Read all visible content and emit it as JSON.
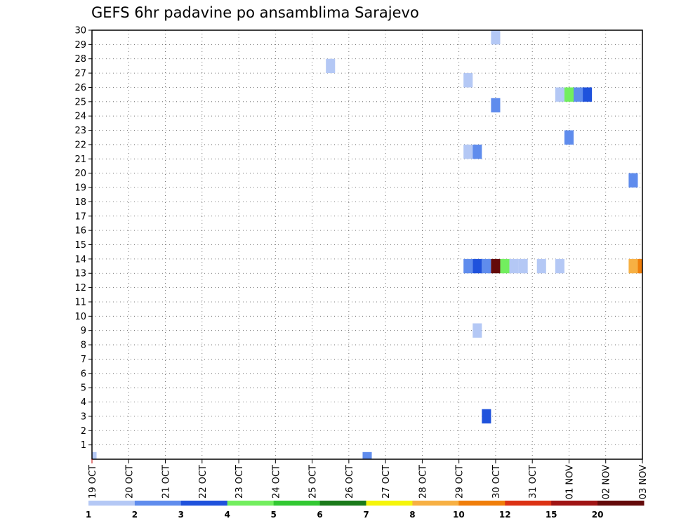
{
  "chart_data": {
    "type": "heatmap",
    "title": "GEFS 6hr padavine po ansamblima Sarajevo",
    "xlabel": "",
    "ylabel": "",
    "x_tick_labels": [
      "19 OCT",
      "20 OCT",
      "21 OCT",
      "22 OCT",
      "23 OCT",
      "24 OCT",
      "25 OCT",
      "26 OCT",
      "27 OCT",
      "28 OCT",
      "29 OCT",
      "30 OCT",
      "31 OCT",
      "01 NOV",
      "02 NOV",
      "03 NOV"
    ],
    "y_tick_labels": [
      "1",
      "2",
      "3",
      "4",
      "5",
      "6",
      "7",
      "8",
      "9",
      "10",
      "11",
      "12",
      "13",
      "14",
      "15",
      "16",
      "17",
      "18",
      "19",
      "20",
      "21",
      "22",
      "23",
      "24",
      "25",
      "26",
      "27",
      "28",
      "29",
      "30"
    ],
    "xlim": [
      0,
      15
    ],
    "ylim": [
      0,
      30
    ],
    "grid": true,
    "step_days": 0.25,
    "colorbar": {
      "labels": [
        "1",
        "2",
        "3",
        "4",
        "5",
        "6",
        "7",
        "8",
        "10",
        "12",
        "15",
        "20"
      ],
      "colors": [
        "#b4c8f5",
        "#5f8ced",
        "#1f52dc",
        "#72ee5e",
        "#32c832",
        "#1a7a1a",
        "#f5f50a",
        "#f7b043",
        "#f07e0a",
        "#dc3214",
        "#a01414",
        "#640a0a"
      ]
    },
    "cells": [
      {
        "x": 0.0,
        "member": 0,
        "level": 0
      },
      {
        "x": 7.5,
        "member": 0,
        "level": 1
      },
      {
        "x": 11.0,
        "member": 29.5,
        "level": 0
      },
      {
        "x": 6.5,
        "member": 27.5,
        "level": 0
      },
      {
        "x": 10.25,
        "member": 26.5,
        "level": 0
      },
      {
        "x": 12.75,
        "member": 25.5,
        "level": 0
      },
      {
        "x": 13.0,
        "member": 25.5,
        "level": 3
      },
      {
        "x": 13.25,
        "member": 25.5,
        "level": 1
      },
      {
        "x": 13.5,
        "member": 25.5,
        "level": 2
      },
      {
        "x": 11.0,
        "member": 24.75,
        "level": 1
      },
      {
        "x": 13.0,
        "member": 22.5,
        "level": 1
      },
      {
        "x": 10.25,
        "member": 21.5,
        "level": 0
      },
      {
        "x": 10.5,
        "member": 21.5,
        "level": 1
      },
      {
        "x": 14.75,
        "member": 19.5,
        "level": 1
      },
      {
        "x": 10.25,
        "member": 13.5,
        "level": 1
      },
      {
        "x": 10.5,
        "member": 13.5,
        "level": 2
      },
      {
        "x": 10.75,
        "member": 13.5,
        "level": 1
      },
      {
        "x": 11.0,
        "member": 13.5,
        "level": 11
      },
      {
        "x": 11.25,
        "member": 13.5,
        "level": 3
      },
      {
        "x": 11.5,
        "member": 13.5,
        "level": 0
      },
      {
        "x": 11.75,
        "member": 13.5,
        "level": 0
      },
      {
        "x": 12.25,
        "member": 13.5,
        "level": 0
      },
      {
        "x": 12.75,
        "member": 13.5,
        "level": 0
      },
      {
        "x": 14.75,
        "member": 13.5,
        "level": 7
      },
      {
        "x": 15.0,
        "member": 13.5,
        "level": 8
      },
      {
        "x": 10.5,
        "member": 9.0,
        "level": 0
      },
      {
        "x": 10.75,
        "member": 3.0,
        "level": 2
      }
    ]
  }
}
